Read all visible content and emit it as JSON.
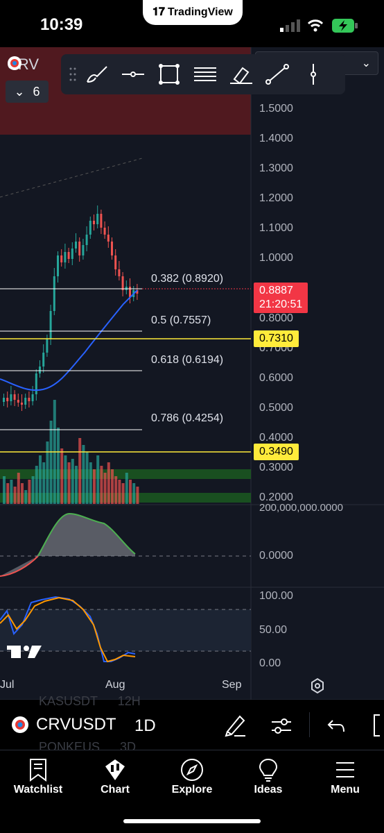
{
  "status_bar": {
    "time": "10:39",
    "app_pill": "TradingView"
  },
  "chart_header": {
    "symbol_short": "CRV",
    "indicator_count": "6"
  },
  "price_axis": [
    "1.5000",
    "1.4000",
    "1.3000",
    "1.2000",
    "1.1000",
    "1.0000",
    "0.8000",
    "0.7000",
    "0.6000",
    "0.5000",
    "0.4000",
    "0.3000",
    "0.2000"
  ],
  "price_badges": {
    "last": {
      "price": "0.8887",
      "countdown": "21:20:51",
      "color": "#f23645"
    },
    "level_high": {
      "price": "0.7310",
      "color": "#ffeb3b"
    },
    "level_low": {
      "price": "0.3490",
      "color": "#ffeb3b"
    }
  },
  "fib_levels": [
    {
      "label": "0.382 (0.8920)"
    },
    {
      "label": "0.5 (0.7557)"
    },
    {
      "label": "0.618 (0.6194)"
    },
    {
      "label": "0.786 (0.4254)"
    }
  ],
  "volume_axis": {
    "top": "200,000,000.0000",
    "zero": "0.0000"
  },
  "oscillator_axis": [
    "100.00",
    "50.00",
    "0.00"
  ],
  "time_axis": [
    "Jul",
    "Aug",
    "Sep"
  ],
  "ghost_text": {
    "row1_symbol": "KASUSDT",
    "row1_interval": "12H",
    "row2_symbol": "PONKEUS",
    "row2_interval": "3D"
  },
  "symbol_bar": {
    "symbol": "CRVUSDT",
    "interval": "1D"
  },
  "tabs": [
    {
      "label": "Watchlist",
      "icon": "watchlist-icon"
    },
    {
      "label": "Chart",
      "icon": "chart-icon"
    },
    {
      "label": "Explore",
      "icon": "compass-icon"
    },
    {
      "label": "Ideas",
      "icon": "lightbulb-icon"
    },
    {
      "label": "Menu",
      "icon": "menu-icon"
    }
  ],
  "colors": {
    "bg": "#131722",
    "up": "#26a69a",
    "down": "#ef5350",
    "ma": "#2962ff",
    "fib": "#ffffff",
    "level": "#ffeb3b"
  }
}
